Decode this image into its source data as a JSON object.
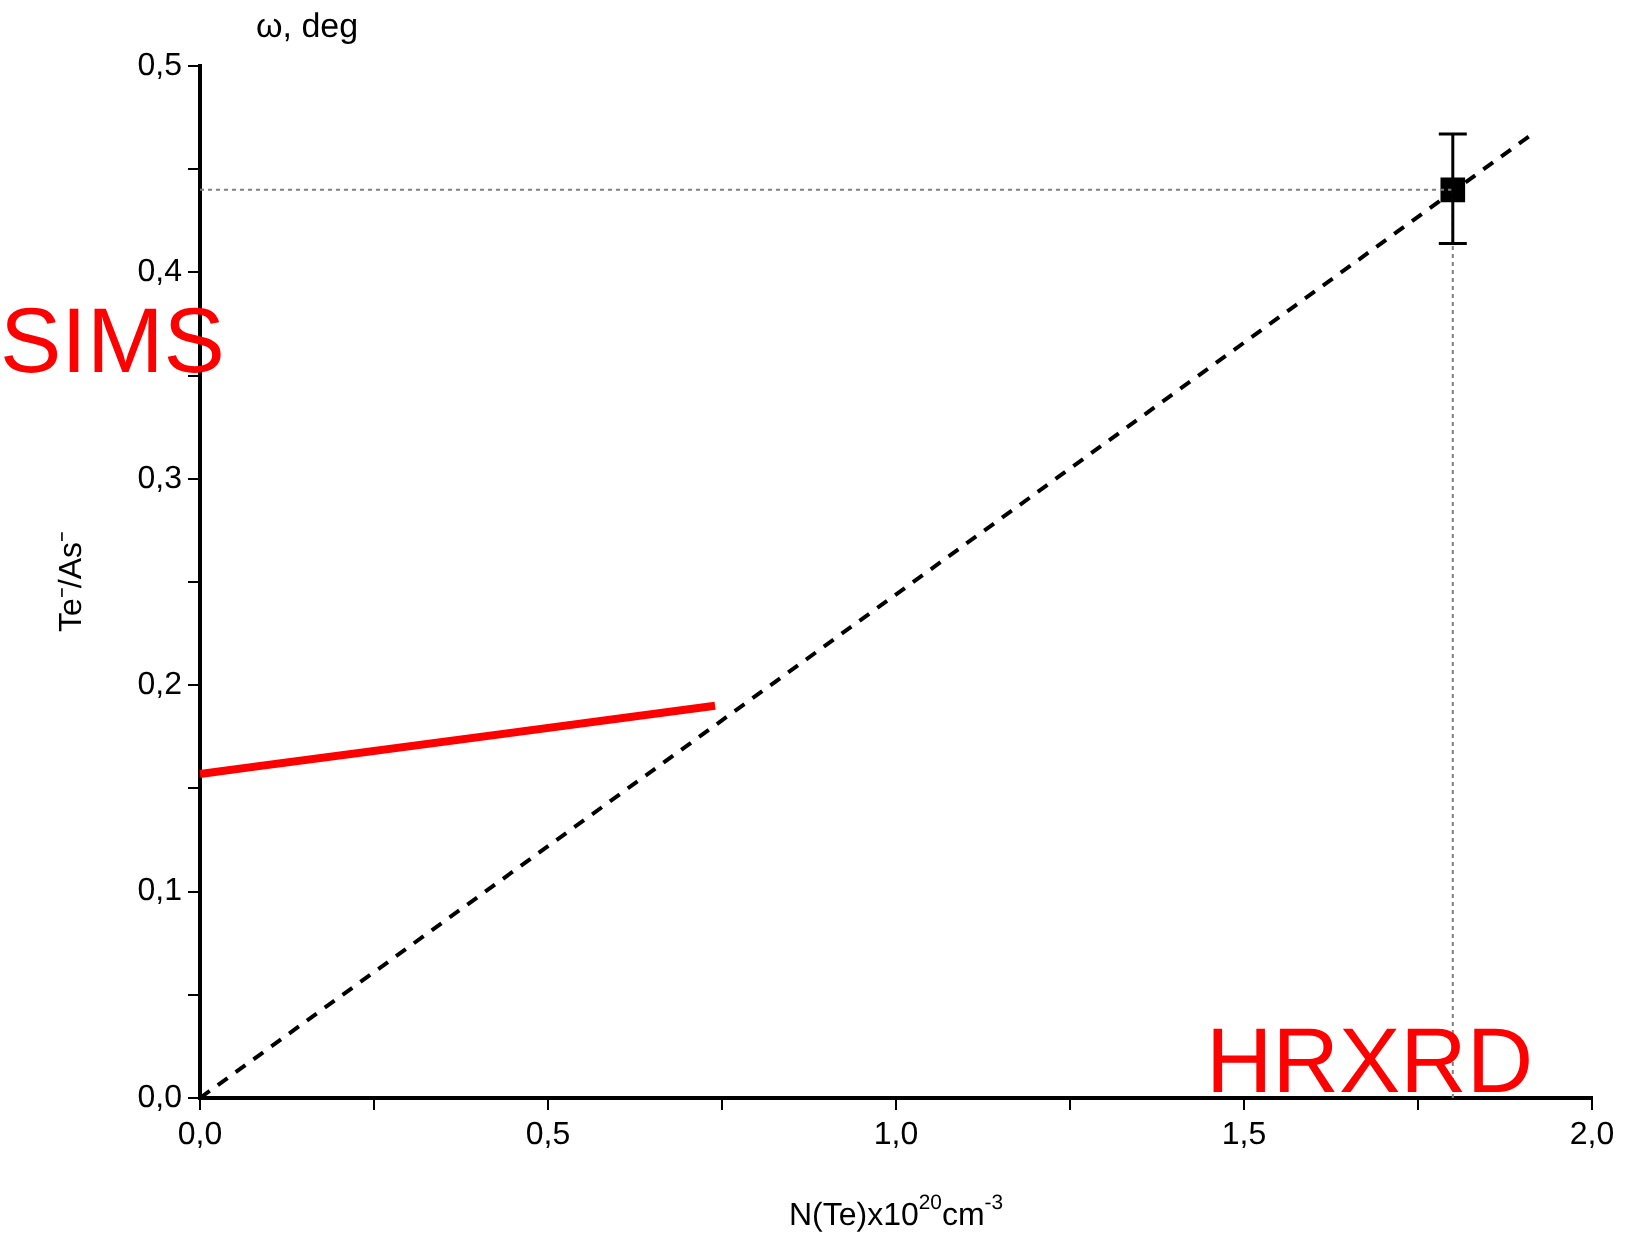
{
  "chart_data": {
    "type": "line",
    "xlabel": "N(Te)x10$^{20}$cm$^{-3}$",
    "ylabel": "Te⁻/As⁻",
    "xlim": [
      0,
      2.0
    ],
    "ylim": [
      0,
      0.5
    ],
    "xticks": [
      {
        "value": 0,
        "label": "0,0"
      },
      {
        "value": 0.25,
        "label": null
      },
      {
        "value": 0.5,
        "label": "0,5"
      },
      {
        "value": 0.75,
        "label": null
      },
      {
        "value": 1.0,
        "label": "1,0"
      },
      {
        "value": 1.25,
        "label": null
      },
      {
        "value": 1.5,
        "label": "1,5"
      },
      {
        "value": 1.75,
        "label": null
      },
      {
        "value": 2.0,
        "label": "2,0"
      }
    ],
    "yticks": [
      {
        "value": 0,
        "label": "0,0"
      },
      {
        "value": 0.05,
        "label": null
      },
      {
        "value": 0.1,
        "label": "0,1"
      },
      {
        "value": 0.15,
        "label": null
      },
      {
        "value": 0.2,
        "label": "0,2"
      },
      {
        "value": 0.25,
        "label": null
      },
      {
        "value": 0.3,
        "label": "0,3"
      },
      {
        "value": 0.35,
        "label": null
      },
      {
        "value": 0.4,
        "label": "0,4"
      },
      {
        "value": 0.45,
        "label": null
      },
      {
        "value": 0.5,
        "label": "0,5"
      }
    ],
    "series": [
      {
        "name": "SIMS",
        "type": "line",
        "color": "#ff0000",
        "x": [
          0,
          0.74
        ],
        "values": [
          0.157,
          0.19
        ],
        "line_style": "solid"
      },
      {
        "type": "line",
        "color": "#000000",
        "x": [
          0,
          1.91
        ],
        "values": [
          0,
          0.466
        ],
        "line_style": "dashed"
      },
      {
        "type": "scatter",
        "color": "#000000",
        "x": [
          1.8
        ],
        "values": [
          0.44
        ],
        "marker": "square",
        "errors": [
          [
            0.414,
            0.467
          ]
        ]
      }
    ],
    "ref_lines": [
      {
        "axis": "y",
        "value": 0.44,
        "color": "#808080",
        "line_style": "dotted"
      },
      {
        "axis": "x",
        "value": 1.8,
        "color": "#808080",
        "line_style": "dotted"
      }
    ],
    "annotations": [
      "ω, deg",
      "HRXRD"
    ],
    "grid": false,
    "legend": false
  }
}
